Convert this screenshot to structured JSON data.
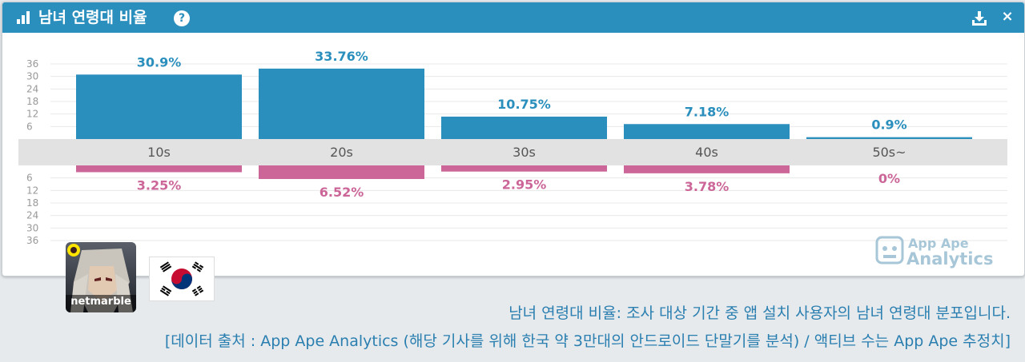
{
  "header": {
    "title": "남녀 연령대 비율",
    "help": "?",
    "download_icon": "download-icon",
    "close": "×"
  },
  "chart_data": {
    "type": "bar",
    "categories": [
      "10s",
      "20s",
      "30s",
      "40s",
      "50s~"
    ],
    "series": [
      {
        "values": [
          30.9,
          33.76,
          10.75,
          7.18,
          0.9
        ],
        "labels": [
          "30.9%",
          "33.76%",
          "10.75%",
          "7.18%",
          "0.9%"
        ],
        "color": "#2a8fbd"
      },
      {
        "values": [
          3.25,
          6.52,
          2.95,
          3.78,
          0
        ],
        "labels": [
          "3.25%",
          "6.52%",
          "2.95%",
          "3.78%",
          "0%"
        ],
        "color": "#cc6699"
      }
    ],
    "top_ticks": [
      "36",
      "30",
      "24",
      "18",
      "12",
      "6"
    ],
    "bottom_ticks": [
      "6",
      "12",
      "18",
      "24",
      "30",
      "36"
    ],
    "ylim": [
      0,
      36
    ],
    "grid": true
  },
  "watermark": {
    "line1": "App Ape",
    "line2": "Analytics"
  },
  "app": {
    "publisher": "netmarble"
  },
  "flag": "south-korea-flag",
  "captions": {
    "line1": "남녀 연령대 비율: 조사 대상 기간 중 앱 설치 사용자의 남녀 연령대 분포입니다.",
    "line2": "[데이터 출처 : App Ape Analytics (해당 기사를 위해 한국 약 3만대의 안드로이드 단말기를 분석) / 액티브 수는 App Ape 추정치]"
  }
}
